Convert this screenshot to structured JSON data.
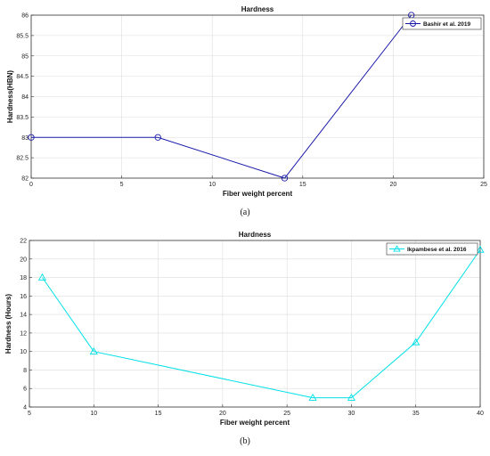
{
  "chart_data": [
    {
      "type": "line",
      "title": "Hardness",
      "xlabel": "Fiber weight percent",
      "ylabel": "Hardness(HBN)",
      "xlim": [
        0,
        25
      ],
      "ylim": [
        82,
        86
      ],
      "xticks": [
        "0",
        "5",
        "10",
        "15",
        "20",
        "25"
      ],
      "yticks": [
        "82",
        "82.5",
        "83",
        "83.5",
        "84",
        "84.5",
        "85",
        "85.5",
        "86"
      ],
      "grid": true,
      "legend_position": "top-right",
      "series": [
        {
          "name": "Bashir et al. 2019",
          "color": "#1a1aa8",
          "marker": "circle",
          "x": [
            0,
            7,
            14,
            21
          ],
          "y": [
            83,
            83,
            82,
            86
          ]
        }
      ],
      "caption": "(a)"
    },
    {
      "type": "line",
      "title": "Hardness",
      "xlabel": "Fiber weight percent",
      "ylabel": "Hardness (Hours)",
      "xlim": [
        5,
        40
      ],
      "ylim": [
        4,
        22
      ],
      "xticks": [
        "5",
        "10",
        "15",
        "20",
        "25",
        "30",
        "35",
        "40"
      ],
      "yticks": [
        "4",
        "6",
        "8",
        "10",
        "12",
        "14",
        "16",
        "18",
        "20",
        "22"
      ],
      "grid": true,
      "legend_position": "top-right",
      "series": [
        {
          "name": "Ikpambese et al. 2016",
          "color": "#00e0e8",
          "marker": "triangle",
          "x": [
            6,
            10,
            27,
            30,
            35,
            40
          ],
          "y": [
            18,
            10,
            5,
            5,
            11,
            21
          ]
        }
      ],
      "caption": "(b)"
    }
  ]
}
